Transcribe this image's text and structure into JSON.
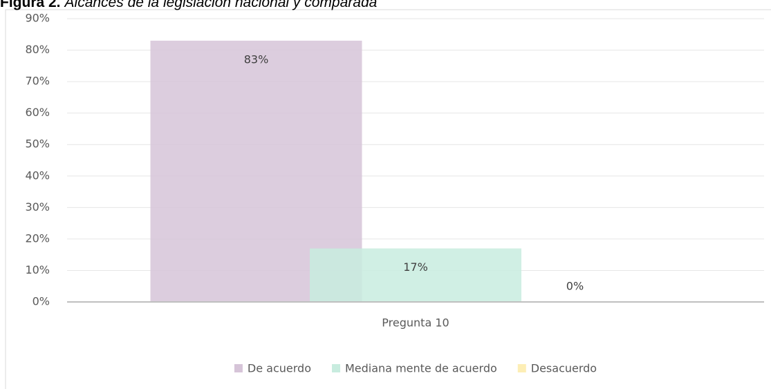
{
  "chart_data": {
    "type": "bar",
    "title_prefix": "Figura 2.",
    "title": "Alcances de la legislación nacional y comparada",
    "categories": [
      "Pregunta 10"
    ],
    "series": [
      {
        "name": "De acuerdo",
        "color": "#d6c4d8",
        "values": [
          83
        ],
        "value_labels": [
          "83%"
        ]
      },
      {
        "name": "Mediana mente de acuerdo",
        "color": "#c8ecdf",
        "values": [
          17
        ],
        "value_labels": [
          "17%"
        ]
      },
      {
        "name": "Desacuerdo",
        "color": "#fdeeb5",
        "values": [
          0
        ],
        "value_labels": [
          "0%"
        ]
      }
    ],
    "ylim": [
      0,
      90
    ],
    "yticks": [
      {
        "value": 0,
        "label": "0%"
      },
      {
        "value": 10,
        "label": "10%"
      },
      {
        "value": 20,
        "label": "20%"
      },
      {
        "value": 30,
        "label": "30%"
      },
      {
        "value": 40,
        "label": "40%"
      },
      {
        "value": 50,
        "label": "50%"
      },
      {
        "value": 60,
        "label": "60%"
      },
      {
        "value": 70,
        "label": "70%"
      },
      {
        "value": 80,
        "label": "80%"
      },
      {
        "value": 90,
        "label": "90%"
      }
    ],
    "grid": true,
    "legend": "bottom"
  }
}
